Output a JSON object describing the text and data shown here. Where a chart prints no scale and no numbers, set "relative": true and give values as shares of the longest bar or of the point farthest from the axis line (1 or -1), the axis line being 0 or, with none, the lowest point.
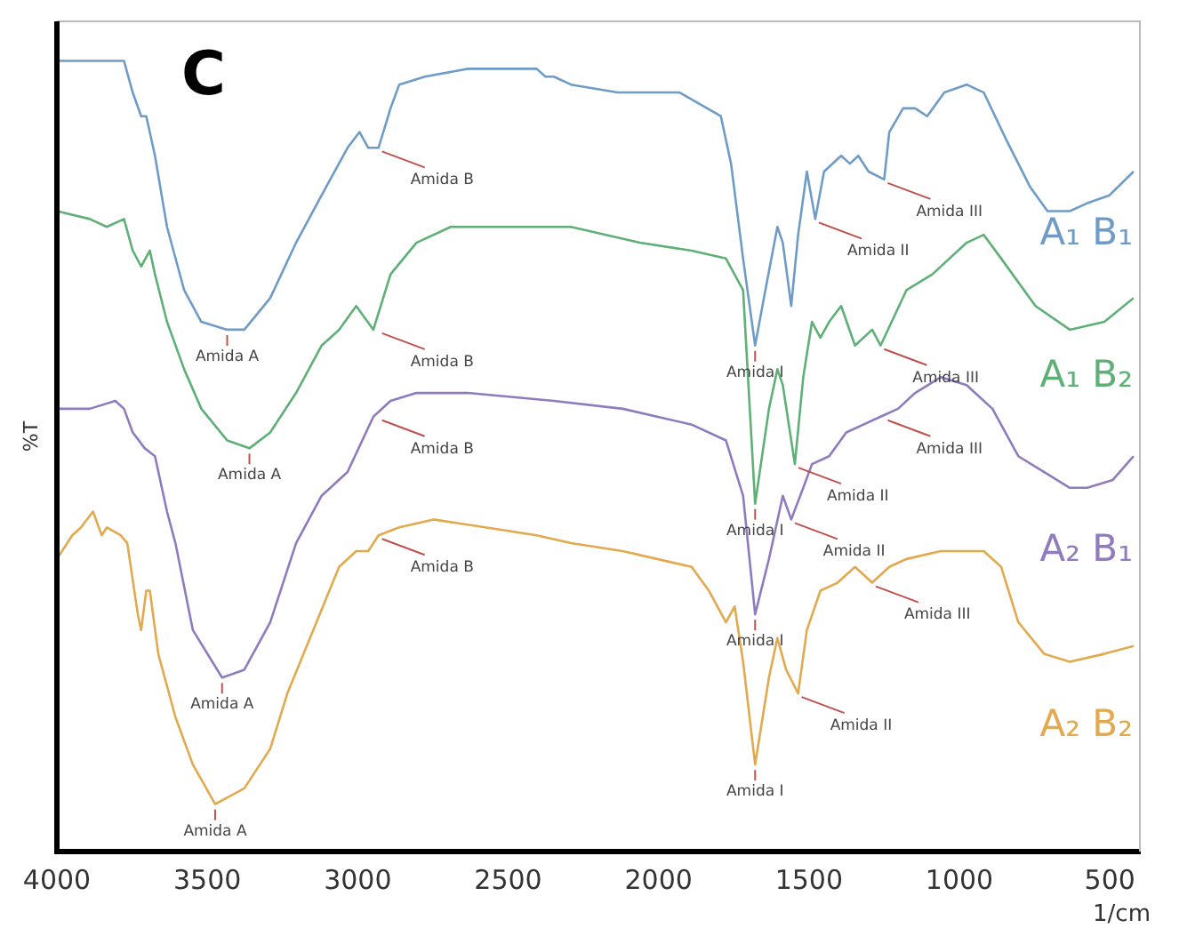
{
  "chart_data": {
    "type": "line",
    "title": "C",
    "xlabel": "1/cm",
    "ylabel": "%T",
    "relative": true,
    "xlim": [
      4000,
      400
    ],
    "xticks": [
      4000,
      3500,
      3000,
      2500,
      2000,
      1500,
      1000,
      500
    ],
    "marker": "none",
    "line_style": "solid",
    "series": [
      {
        "name": "A₁ B₁",
        "color": "#6f9cc6",
        "x": [
          4000,
          3891,
          3777,
          3748,
          3720,
          3703,
          3674,
          3634,
          3577,
          3520,
          3434,
          3377,
          3291,
          3205,
          3120,
          3034,
          2994,
          2965,
          2931,
          2891,
          2862,
          2777,
          2634,
          2405,
          2376,
          2348,
          2291,
          2136,
          1930,
          1793,
          1759,
          1719,
          1679,
          1645,
          1605,
          1587,
          1559,
          1536,
          1507,
          1479,
          1450,
          1393,
          1364,
          1336,
          1302,
          1250,
          1233,
          1187,
          1147,
          1107,
          1050,
          976,
          919,
          844,
          764,
          707,
          633,
          575,
          501,
          421
        ],
        "values": [
          1.0,
          1.0,
          1.0,
          0.96,
          0.93,
          0.93,
          0.88,
          0.79,
          0.71,
          0.67,
          0.66,
          0.66,
          0.7,
          0.77,
          0.83,
          0.89,
          0.91,
          0.89,
          0.89,
          0.94,
          0.97,
          0.98,
          0.99,
          0.99,
          0.98,
          0.98,
          0.97,
          0.96,
          0.96,
          0.93,
          0.87,
          0.75,
          0.64,
          0.71,
          0.79,
          0.77,
          0.69,
          0.78,
          0.86,
          0.8,
          0.86,
          0.88,
          0.87,
          0.88,
          0.86,
          0.85,
          0.91,
          0.94,
          0.94,
          0.93,
          0.96,
          0.97,
          0.96,
          0.9,
          0.84,
          0.81,
          0.81,
          0.82,
          0.83,
          0.86
        ]
      },
      {
        "name": "A₁ B₂",
        "color": "#5fb077",
        "x": [
          4000,
          3891,
          3834,
          3777,
          3748,
          3720,
          3691,
          3674,
          3634,
          3577,
          3520,
          3434,
          3360,
          3291,
          3205,
          3120,
          3062,
          3005,
          2948,
          2891,
          2805,
          2691,
          2519,
          2291,
          2062,
          1890,
          1776,
          1719,
          1679,
          1633,
          1605,
          1587,
          1547,
          1519,
          1490,
          1462,
          1433,
          1393,
          1347,
          1290,
          1262,
          1176,
          1090,
          976,
          919,
          861,
          747,
          633,
          518,
          421
        ],
        "values": [
          0.81,
          0.8,
          0.79,
          0.8,
          0.76,
          0.74,
          0.76,
          0.73,
          0.67,
          0.61,
          0.56,
          0.52,
          0.51,
          0.53,
          0.58,
          0.64,
          0.66,
          0.69,
          0.66,
          0.73,
          0.77,
          0.79,
          0.79,
          0.79,
          0.77,
          0.76,
          0.75,
          0.71,
          0.44,
          0.56,
          0.61,
          0.59,
          0.49,
          0.6,
          0.67,
          0.65,
          0.67,
          0.69,
          0.64,
          0.66,
          0.64,
          0.71,
          0.73,
          0.77,
          0.78,
          0.75,
          0.69,
          0.66,
          0.67,
          0.7
        ]
      },
      {
        "name": "A₂ B₁",
        "color": "#8f7bbd",
        "x": [
          4000,
          3891,
          3806,
          3777,
          3748,
          3708,
          3674,
          3634,
          3606,
          3548,
          3451,
          3377,
          3291,
          3205,
          3120,
          3034,
          2948,
          2891,
          2805,
          2634,
          2348,
          2119,
          1890,
          1776,
          1719,
          1679,
          1633,
          1587,
          1559,
          1519,
          1490,
          1433,
          1376,
          1319,
          1262,
          1204,
          1147,
          1062,
          976,
          890,
          804,
          718,
          633,
          575,
          490,
          421
        ],
        "values": [
          0.56,
          0.56,
          0.57,
          0.56,
          0.53,
          0.51,
          0.5,
          0.43,
          0.39,
          0.28,
          0.22,
          0.23,
          0.29,
          0.39,
          0.45,
          0.48,
          0.55,
          0.57,
          0.58,
          0.58,
          0.57,
          0.56,
          0.54,
          0.52,
          0.45,
          0.3,
          0.37,
          0.45,
          0.42,
          0.46,
          0.49,
          0.5,
          0.53,
          0.54,
          0.55,
          0.56,
          0.58,
          0.6,
          0.59,
          0.56,
          0.5,
          0.48,
          0.46,
          0.46,
          0.47,
          0.5
        ]
      },
      {
        "name": "A₂ B₂",
        "color": "#e2a94e",
        "x": [
          4000,
          3949,
          3920,
          3880,
          3851,
          3834,
          3788,
          3766,
          3731,
          3720,
          3703,
          3691,
          3663,
          3606,
          3548,
          3474,
          3377,
          3291,
          3234,
          3148,
          3062,
          3005,
          2965,
          2931,
          2862,
          2748,
          2576,
          2405,
          2291,
          2119,
          2005,
          1890,
          1833,
          1776,
          1747,
          1719,
          1679,
          1633,
          1605,
          1576,
          1536,
          1507,
          1462,
          1405,
          1347,
          1290,
          1233,
          1176,
          1062,
          919,
          861,
          804,
          718,
          633,
          518,
          421
        ],
        "values": [
          0.37,
          0.4,
          0.41,
          0.43,
          0.4,
          0.41,
          0.4,
          0.39,
          0.3,
          0.28,
          0.33,
          0.33,
          0.25,
          0.17,
          0.11,
          0.06,
          0.08,
          0.13,
          0.2,
          0.28,
          0.36,
          0.38,
          0.38,
          0.4,
          0.41,
          0.42,
          0.41,
          0.4,
          0.39,
          0.38,
          0.37,
          0.36,
          0.33,
          0.29,
          0.31,
          0.24,
          0.11,
          0.22,
          0.27,
          0.23,
          0.2,
          0.28,
          0.33,
          0.34,
          0.36,
          0.34,
          0.36,
          0.37,
          0.38,
          0.38,
          0.36,
          0.29,
          0.25,
          0.24,
          0.25,
          0.26
        ]
      }
    ],
    "annotations": [
      {
        "text": "Amida A",
        "x": 3434,
        "y": 0.66
      },
      {
        "text": "Amida B",
        "x": 2931,
        "y": 0.89
      },
      {
        "text": "Amida I",
        "x": 1679,
        "y": 0.64
      },
      {
        "text": "Amida II",
        "x": 1479,
        "y": 0.8
      },
      {
        "text": "Amida III",
        "x": 1250,
        "y": 0.85
      },
      {
        "text": "Amida A",
        "x": 3360,
        "y": 0.51
      },
      {
        "text": "Amida B",
        "x": 2931,
        "y": 0.66
      },
      {
        "text": "Amida I",
        "x": 1679,
        "y": 0.44
      },
      {
        "text": "Amida II",
        "x": 1547,
        "y": 0.49
      },
      {
        "text": "Amida III",
        "x": 1262,
        "y": 0.64
      },
      {
        "text": "Amida A",
        "x": 3451,
        "y": 0.22
      },
      {
        "text": "Amida B",
        "x": 2931,
        "y": 0.55
      },
      {
        "text": "Amida I",
        "x": 1679,
        "y": 0.3
      },
      {
        "text": "Amida II",
        "x": 1559,
        "y": 0.42
      },
      {
        "text": "Amida III",
        "x": 1250,
        "y": 0.55
      },
      {
        "text": "Amida A",
        "x": 3474,
        "y": 0.06
      },
      {
        "text": "Amida B",
        "x": 2931,
        "y": 0.4
      },
      {
        "text": "Amida I",
        "x": 1679,
        "y": 0.11
      },
      {
        "text": "Amida II",
        "x": 1536,
        "y": 0.2
      },
      {
        "text": "Amida III",
        "x": 1290,
        "y": 0.34
      }
    ]
  }
}
